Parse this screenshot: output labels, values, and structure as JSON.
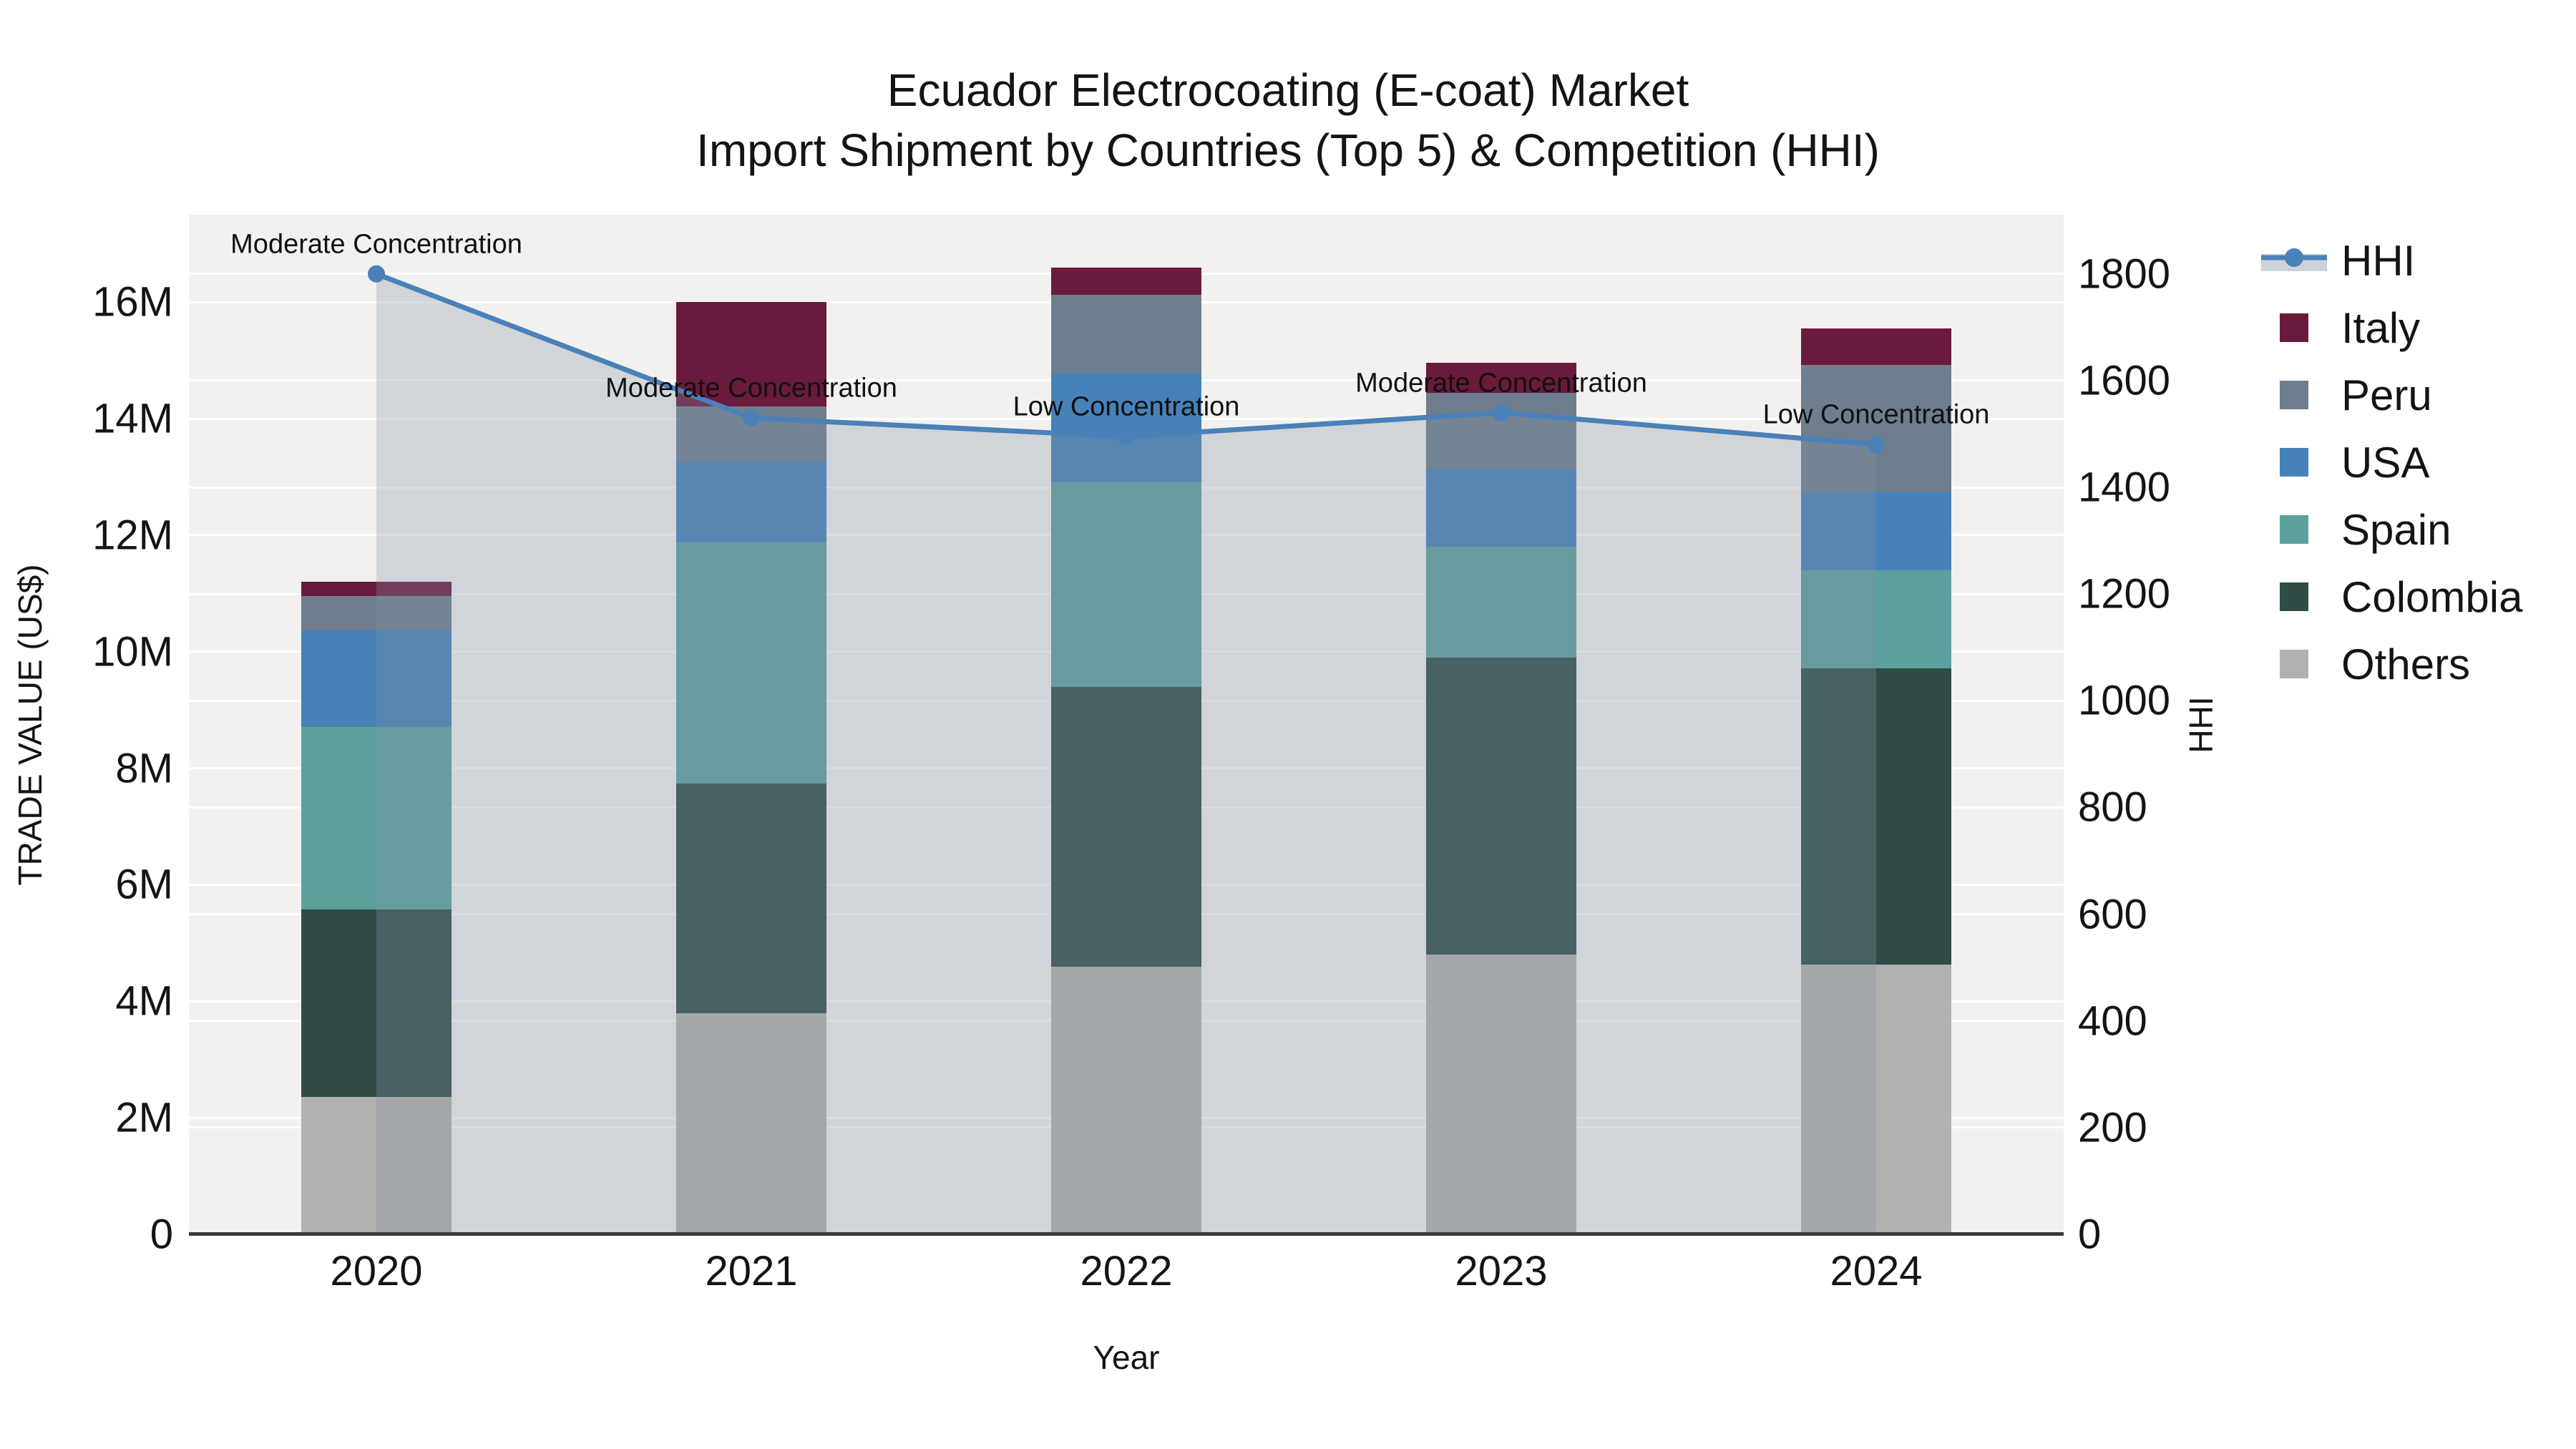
{
  "title": {
    "line1": "Ecuador Electrocoating (E-coat) Market",
    "line2": "Import Shipment by Countries (Top 5) & Competition (HHI)"
  },
  "axes": {
    "x_label": "Year",
    "y_left_label": "TRADE VALUE (US$)",
    "y_right_label": "HHI",
    "x_ticks": [
      "2020",
      "2021",
      "2022",
      "2023",
      "2024"
    ],
    "y_left_ticks": [
      "0",
      "2M",
      "4M",
      "6M",
      "8M",
      "10M",
      "12M",
      "14M",
      "16M"
    ],
    "y_right_ticks": [
      "0",
      "200",
      "400",
      "600",
      "800",
      "1000",
      "1200",
      "1400",
      "1600",
      "1800"
    ]
  },
  "chart_data": {
    "type": "bar+line",
    "subtype": "stacked bars (trade value, left axis) with HHI line + shaded area (right axis)",
    "categories": [
      "2020",
      "2021",
      "2022",
      "2023",
      "2024"
    ],
    "value_units": "million US$",
    "series": [
      {
        "name": "Others",
        "color": "#b1b1af",
        "values": [
          2.36,
          3.79,
          4.59,
          4.8,
          4.63
        ]
      },
      {
        "name": "Colombia",
        "color": "#2f4c47",
        "values": [
          3.21,
          3.95,
          4.8,
          5.1,
          5.08
        ]
      },
      {
        "name": "Spain",
        "color": "#5ca09e",
        "values": [
          3.14,
          4.13,
          3.52,
          1.9,
          1.69
        ]
      },
      {
        "name": "USA",
        "color": "#4682b9",
        "values": [
          1.65,
          1.41,
          1.86,
          1.33,
          1.34
        ]
      },
      {
        "name": "Peru",
        "color": "#6f7e8e",
        "values": [
          0.59,
          0.93,
          1.35,
          1.31,
          2.18
        ]
      },
      {
        "name": "Italy",
        "color": "#6a1b3d",
        "values": [
          0.25,
          1.79,
          0.47,
          0.52,
          0.63
        ]
      }
    ],
    "stack_totals": [
      11.2,
      16.0,
      16.6,
      15.0,
      15.55
    ],
    "line_series": {
      "name": "HHI",
      "color": "#4a81b8",
      "area_color": "#8591a2",
      "area_opacity": 0.3,
      "values": [
        1800,
        1530,
        1495,
        1540,
        1480
      ]
    },
    "annotations": [
      {
        "x": "2020",
        "text": "Moderate Concentration"
      },
      {
        "x": "2021",
        "text": "Moderate Concentration"
      },
      {
        "x": "2022",
        "text": "Low Concentration"
      },
      {
        "x": "2023",
        "text": "Moderate Concentration"
      },
      {
        "x": "2024",
        "text": "Low Concentration"
      }
    ],
    "ylim_left": [
      0,
      17.5
    ],
    "ylim_right": [
      0,
      1911
    ],
    "grid": true,
    "legend_position": "right",
    "legend_order": [
      "HHI",
      "Italy",
      "Peru",
      "USA",
      "Spain",
      "Colombia",
      "Others"
    ]
  },
  "colors": {
    "plot_bg": "#f2f1f0",
    "grid": "#ffffff",
    "axis_line": "#3a3a3a",
    "text": "#141414",
    "legend_band": "#ccd3dd"
  }
}
